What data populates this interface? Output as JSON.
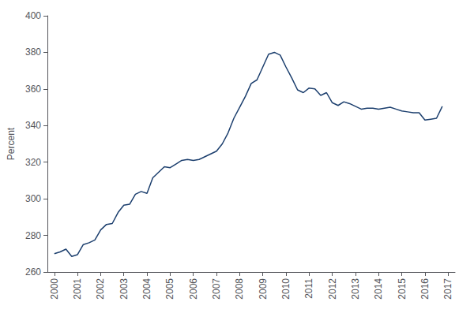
{
  "chart_data": {
    "type": "line",
    "ylabel": "Percent",
    "color": "#1c3f6e",
    "grid": false,
    "xlim": [
      1999.7,
      2017.3
    ],
    "xticks": [
      2000,
      2001,
      2002,
      2003,
      2004,
      2005,
      2006,
      2007,
      2008,
      2009,
      2010,
      2011,
      2012,
      2013,
      2014,
      2015,
      2016,
      2017
    ],
    "ylim": [
      260,
      400
    ],
    "yticks": [
      260,
      280,
      300,
      320,
      340,
      360,
      380,
      400
    ],
    "x": [
      2000.0,
      2000.25,
      2000.5,
      2000.75,
      2001.0,
      2001.25,
      2001.5,
      2001.75,
      2002.0,
      2002.25,
      2002.5,
      2002.75,
      2003.0,
      2003.25,
      2003.5,
      2003.75,
      2004.0,
      2004.25,
      2004.5,
      2004.75,
      2005.0,
      2005.25,
      2005.5,
      2005.75,
      2006.0,
      2006.25,
      2006.5,
      2006.75,
      2007.0,
      2007.25,
      2007.5,
      2007.75,
      2008.0,
      2008.25,
      2008.5,
      2008.75,
      2009.0,
      2009.25,
      2009.5,
      2009.75,
      2010.0,
      2010.25,
      2010.5,
      2010.75,
      2011.0,
      2011.25,
      2011.5,
      2011.75,
      2012.0,
      2012.25,
      2012.5,
      2012.75,
      2013.0,
      2013.25,
      2013.5,
      2013.75,
      2014.0,
      2014.25,
      2014.5,
      2014.75,
      2015.0,
      2015.25,
      2015.5,
      2015.75,
      2016.0,
      2016.25,
      2016.5,
      2016.75
    ],
    "values": [
      270.0,
      271.0,
      272.5,
      268.5,
      269.5,
      275.0,
      276.0,
      277.5,
      283.0,
      286.0,
      286.5,
      292.5,
      296.5,
      297.0,
      302.5,
      304.0,
      303.0,
      311.5,
      314.5,
      317.5,
      317.0,
      319.0,
      321.0,
      321.5,
      321.0,
      321.5,
      323.0,
      324.5,
      326.0,
      330.0,
      336.0,
      344.0,
      350.0,
      356.0,
      363.0,
      365.0,
      372.0,
      379.0,
      380.0,
      378.5,
      372.0,
      366.0,
      359.5,
      358.0,
      360.5,
      360.0,
      356.5,
      358.0,
      352.5,
      351.0,
      353.0,
      352.0,
      350.5,
      349.0,
      349.5,
      349.5,
      349.0,
      349.5,
      350.0,
      349.0,
      348.0,
      347.5,
      347.0,
      347.0,
      343.0,
      343.5,
      344.0,
      350.5
    ]
  }
}
